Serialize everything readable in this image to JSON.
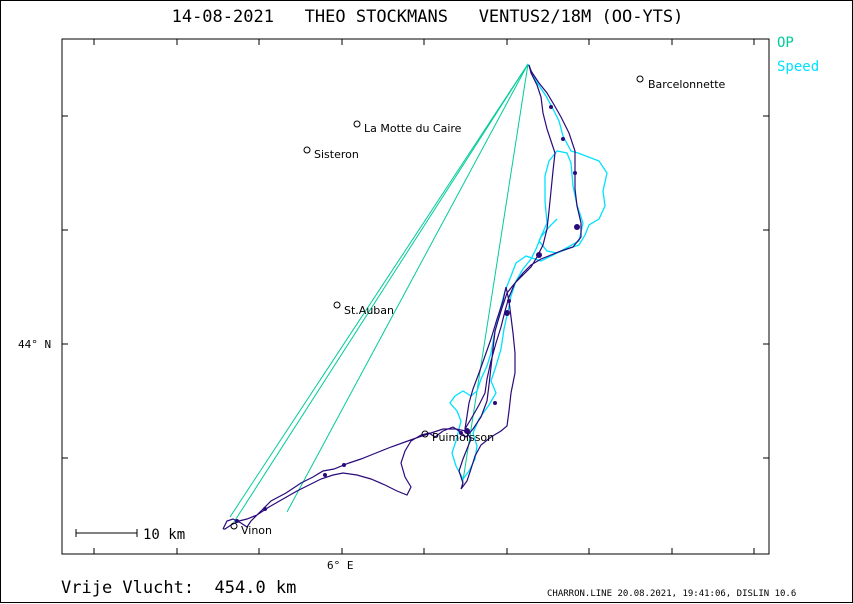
{
  "header": {
    "date": "14-08-2021",
    "pilot": "THEO STOCKMANS",
    "glider": "VENTUS2/18M (OO-YTS)"
  },
  "legend": {
    "op": "OP",
    "speed": "Speed",
    "colors": {
      "op": "#00cc99",
      "speed": "#00e0ff",
      "track": "#2a0a7a"
    }
  },
  "axes": {
    "lat_label": "44° N",
    "lon_label": "6° E"
  },
  "scale": {
    "label": "10 km"
  },
  "places": [
    {
      "name": "Barcelonnette"
    },
    {
      "name": "La Motte du Caire"
    },
    {
      "name": "Sisteron"
    },
    {
      "name": "St.Auban"
    },
    {
      "name": "Puimoisson"
    },
    {
      "name": "Vinon"
    }
  ],
  "footer": {
    "distance": "Vrije Vlucht:  454.0 km",
    "credit": "CHARRON.LINE 20.08.2021, 19:41:06, DISLIN 10.6"
  }
}
